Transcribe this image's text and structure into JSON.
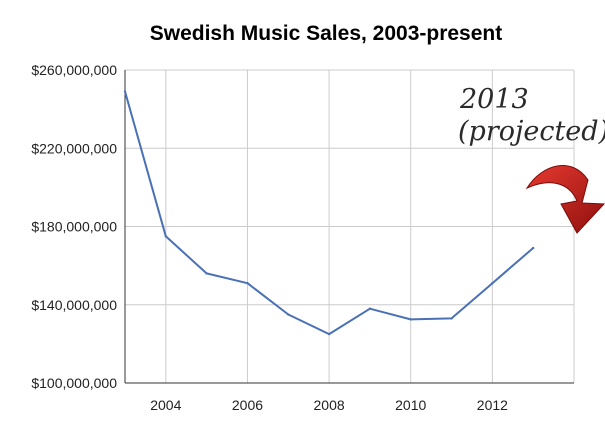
{
  "chart_data": {
    "type": "line",
    "title": "Swedish Music Sales, 2003-present",
    "xlabel": "",
    "ylabel": "",
    "x": [
      2003,
      2004,
      2005,
      2006,
      2007,
      2008,
      2009,
      2010,
      2011,
      2012,
      2013
    ],
    "series": [
      {
        "values": [
          249000000,
          175000000,
          156000000,
          151000000,
          135000000,
          125000000,
          138000000,
          132500000,
          133000000,
          151000000,
          169000000
        ],
        "color": "#4a70b6"
      }
    ],
    "xlim": [
      2003,
      2014
    ],
    "ylim": [
      100000000,
      260000000
    ],
    "x_ticks": [
      2004,
      2006,
      2008,
      2010,
      2012
    ],
    "x_tick_labels": [
      "2004",
      "2006",
      "2008",
      "2010",
      "2012"
    ],
    "y_ticks": [
      100000000,
      140000000,
      180000000,
      220000000,
      260000000
    ],
    "y_tick_labels": [
      "$100,000,000",
      "$140,000,000",
      "$180,000,000",
      "$220,000,000",
      "$260,000,000"
    ],
    "grid": true,
    "legend": "none",
    "annotation": {
      "line1": "2013",
      "line2": "(projected)",
      "arrow_color": "#c8201c",
      "icon": "curved-arrow-icon"
    }
  }
}
